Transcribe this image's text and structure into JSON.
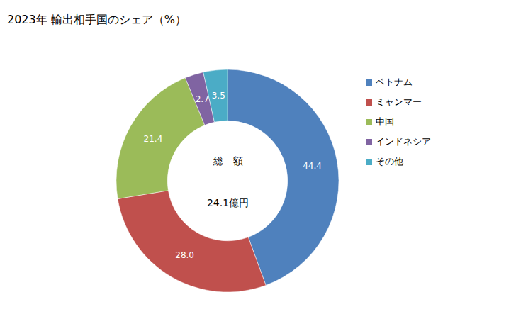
{
  "chart_data": {
    "type": "donut",
    "title": "2023年 輸出相手国のシェア（%）",
    "categories": [
      "ベトナム",
      "ミャンマー",
      "中国",
      "インドネシア",
      "その他"
    ],
    "values": [
      44.4,
      28.0,
      21.4,
      2.7,
      3.5
    ],
    "value_labels": [
      "44.4",
      "28.0",
      "21.4",
      "2.7",
      "3.5"
    ],
    "colors": [
      "#4F81BD",
      "#C0504D",
      "#9BBB59",
      "#8064A2",
      "#4BACC6"
    ],
    "annotations": [
      "総　額",
      "24.1億円"
    ],
    "data_labels": true,
    "legend": "right"
  }
}
